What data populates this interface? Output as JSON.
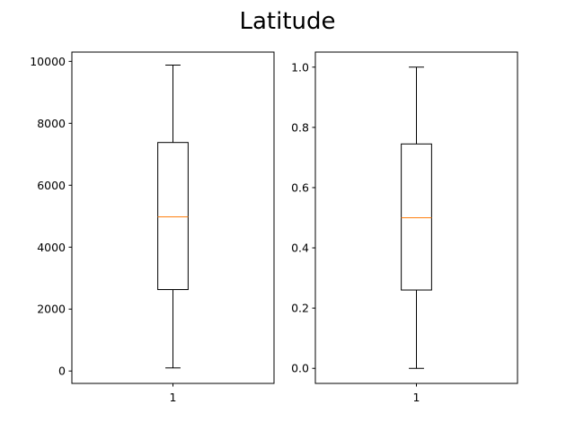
{
  "figure": {
    "title": "Latitude"
  },
  "chart_data": [
    {
      "type": "boxplot",
      "categories": [
        "1"
      ],
      "ylim": [
        -400,
        10300
      ],
      "yticks": [
        0,
        2000,
        4000,
        6000,
        8000,
        10000
      ],
      "ytick_labels": [
        "0",
        "2000",
        "4000",
        "6000",
        "8000",
        "10000"
      ],
      "boxes": [
        {
          "label": "1",
          "whisker_low": 100,
          "q1": 2630,
          "median": 4980,
          "q3": 7380,
          "whisker_high": 9880
        }
      ],
      "colors": {
        "box": "#000000",
        "median": "#ff7f0e"
      },
      "grid": false
    },
    {
      "type": "boxplot",
      "categories": [
        "1"
      ],
      "ylim": [
        -0.05,
        1.05
      ],
      "yticks": [
        0.0,
        0.2,
        0.4,
        0.6,
        0.8,
        1.0
      ],
      "ytick_labels": [
        "0.0",
        "0.2",
        "0.4",
        "0.6",
        "0.8",
        "1.0"
      ],
      "boxes": [
        {
          "label": "1",
          "whisker_low": 0.0,
          "q1": 0.26,
          "median": 0.5,
          "q3": 0.745,
          "whisker_high": 1.0
        }
      ],
      "colors": {
        "box": "#000000",
        "median": "#ff7f0e"
      },
      "grid": false
    }
  ]
}
